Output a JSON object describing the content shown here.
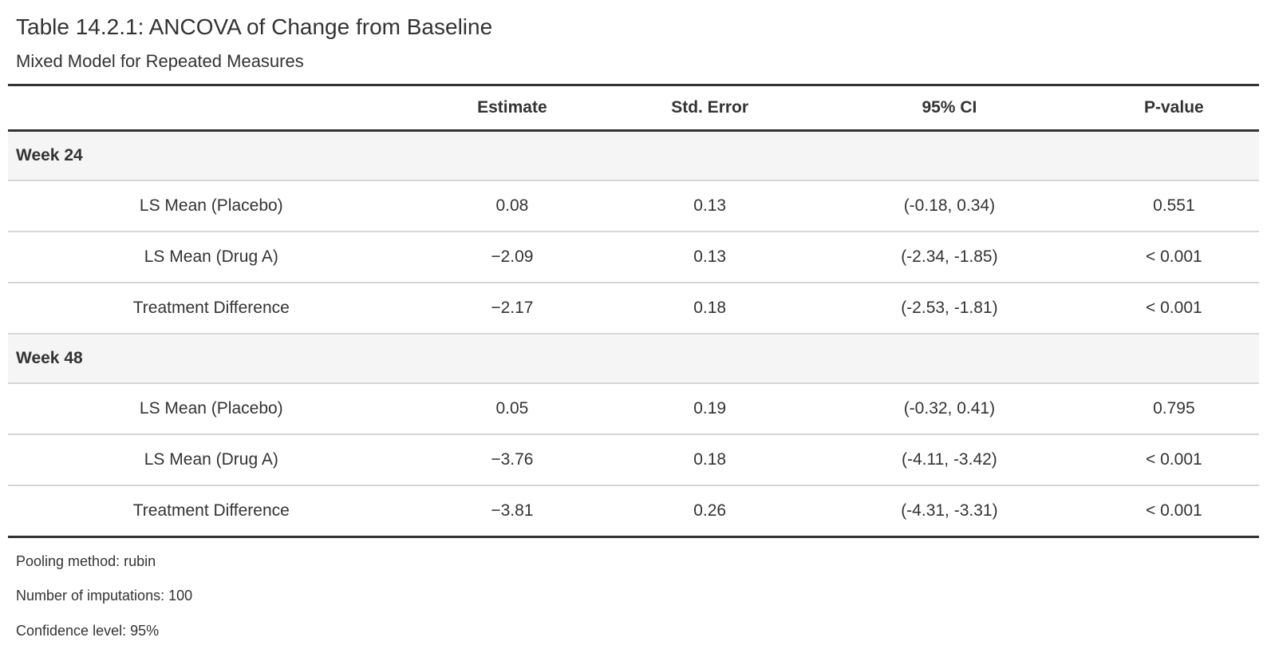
{
  "title": "Table 14.2.1: ANCOVA of Change from Baseline",
  "subtitle": "Mixed Model for Repeated Measures",
  "table": {
    "columns": {
      "stub": "",
      "estimate": "Estimate",
      "std_error": "Std. Error",
      "ci": "95% CI",
      "p_value": "P-value"
    },
    "groups": [
      {
        "label": "Week 24",
        "rows": [
          {
            "label": "LS Mean (Placebo)",
            "estimate": "0.08",
            "std_error": "0.13",
            "ci": "(-0.18, 0.34)",
            "p_value": "0.551"
          },
          {
            "label": "LS Mean (Drug A)",
            "estimate": "−2.09",
            "std_error": "0.13",
            "ci": "(-2.34, -1.85)",
            "p_value": "< 0.001"
          },
          {
            "label": "Treatment Difference",
            "estimate": "−2.17",
            "std_error": "0.18",
            "ci": "(-2.53, -1.81)",
            "p_value": "< 0.001"
          }
        ]
      },
      {
        "label": "Week 48",
        "rows": [
          {
            "label": "LS Mean (Placebo)",
            "estimate": "0.05",
            "std_error": "0.19",
            "ci": "(-0.32, 0.41)",
            "p_value": "0.795"
          },
          {
            "label": "LS Mean (Drug A)",
            "estimate": "−3.76",
            "std_error": "0.18",
            "ci": "(-4.11, -3.42)",
            "p_value": "< 0.001"
          },
          {
            "label": "Treatment Difference",
            "estimate": "−3.81",
            "std_error": "0.26",
            "ci": "(-4.31, -3.31)",
            "p_value": "< 0.001"
          }
        ]
      }
    ],
    "footnotes": [
      "Pooling method: rubin",
      "Number of imputations: 100",
      "Confidence level: 95%"
    ]
  },
  "colors": {
    "text": "#333333",
    "heavy_border": "#333333",
    "light_border": "#d6d6d6",
    "group_row_bg": "#f5f5f5",
    "background": "#ffffff"
  }
}
